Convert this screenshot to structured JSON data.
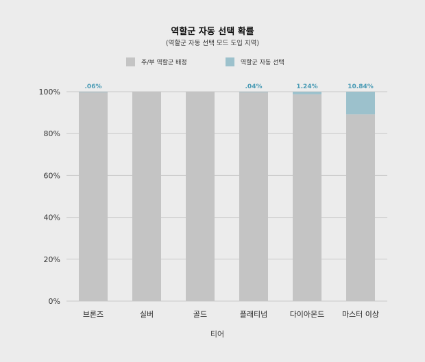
{
  "chart_data": {
    "type": "bar",
    "stacked": true,
    "title": "역할군 자동 선택 확률",
    "subtitle": "(역할군 자동 선택 모드 도입 지역)",
    "xlabel": "티어",
    "ylabel": "",
    "ylim": [
      0,
      100
    ],
    "yticks": [
      "0%",
      "20%",
      "40%",
      "60%",
      "80%",
      "100%"
    ],
    "grid": true,
    "legend_position": "top",
    "categories": [
      "브론즈",
      "실버",
      "골드",
      "플래티넘",
      "다이아몬드",
      "마스터 이상"
    ],
    "series": [
      {
        "name": "주/부 역할군 배정",
        "color": "#c4c4c4",
        "values": [
          99.94,
          100,
          100,
          99.96,
          98.76,
          89.16
        ]
      },
      {
        "name": "역할군 자동 선택",
        "color": "#9cc1cc",
        "values": [
          0.06,
          0,
          0,
          0.04,
          1.24,
          10.84
        ]
      }
    ],
    "data_labels": [
      ".06%",
      "",
      "",
      ".04%",
      "1.24%",
      "10.84%"
    ],
    "data_label_color": "#4a9bb5"
  }
}
